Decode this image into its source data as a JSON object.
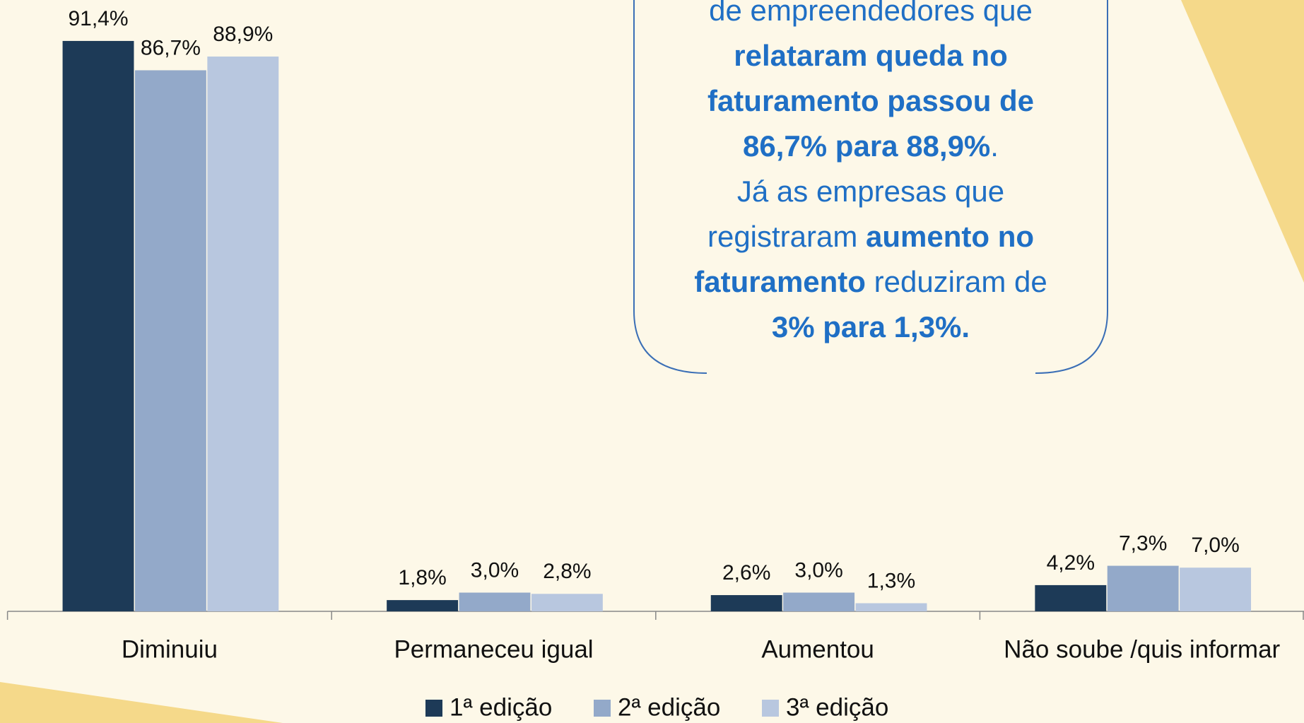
{
  "chart_data": {
    "type": "bar",
    "categories": [
      "Diminuiu",
      "Permaneceu igual",
      "Aumentou",
      "Não soube /quis informar"
    ],
    "series": [
      {
        "name": "1ª edição",
        "color": "#1d3a57",
        "values": [
          91.4,
          1.8,
          2.6,
          4.2
        ],
        "value_labels": [
          "91,4%",
          "1,8%",
          "2,6%",
          "4,2%"
        ]
      },
      {
        "name": "2ª edição",
        "color": "#93a9c9",
        "values": [
          86.7,
          3.0,
          3.0,
          7.3
        ],
        "value_labels": [
          "86,7%",
          "3,0%",
          "3,0%",
          "7,3%"
        ]
      },
      {
        "name": "3ª edição",
        "color": "#b8c7df",
        "values": [
          88.9,
          2.8,
          1.3,
          7.0
        ],
        "value_labels": [
          "88,9%",
          "2,8%",
          "1,3%",
          "7,0%"
        ]
      }
    ],
    "ylim": [
      0,
      100
    ],
    "legend": "bottom",
    "annotation": [
      [
        {
          "text": "de empreendedores que",
          "bold": false
        }
      ],
      [
        {
          "text": "relataram queda no",
          "bold": true
        }
      ],
      [
        {
          "text": "faturamento passou de",
          "bold": true
        }
      ],
      [
        {
          "text": "86,7% para 88,9%",
          "bold": true
        },
        {
          "text": ".",
          "bold": false
        }
      ],
      [
        {
          "text": "Já as empresas que",
          "bold": false
        }
      ],
      [
        {
          "text": "registraram ",
          "bold": false
        },
        {
          "text": "aumento no",
          "bold": true
        }
      ],
      [
        {
          "text": "faturamento",
          "bold": true
        },
        {
          "text": " reduziram de",
          "bold": false
        }
      ],
      [
        {
          "text": "3% para 1,3%.",
          "bold": true
        }
      ]
    ]
  }
}
